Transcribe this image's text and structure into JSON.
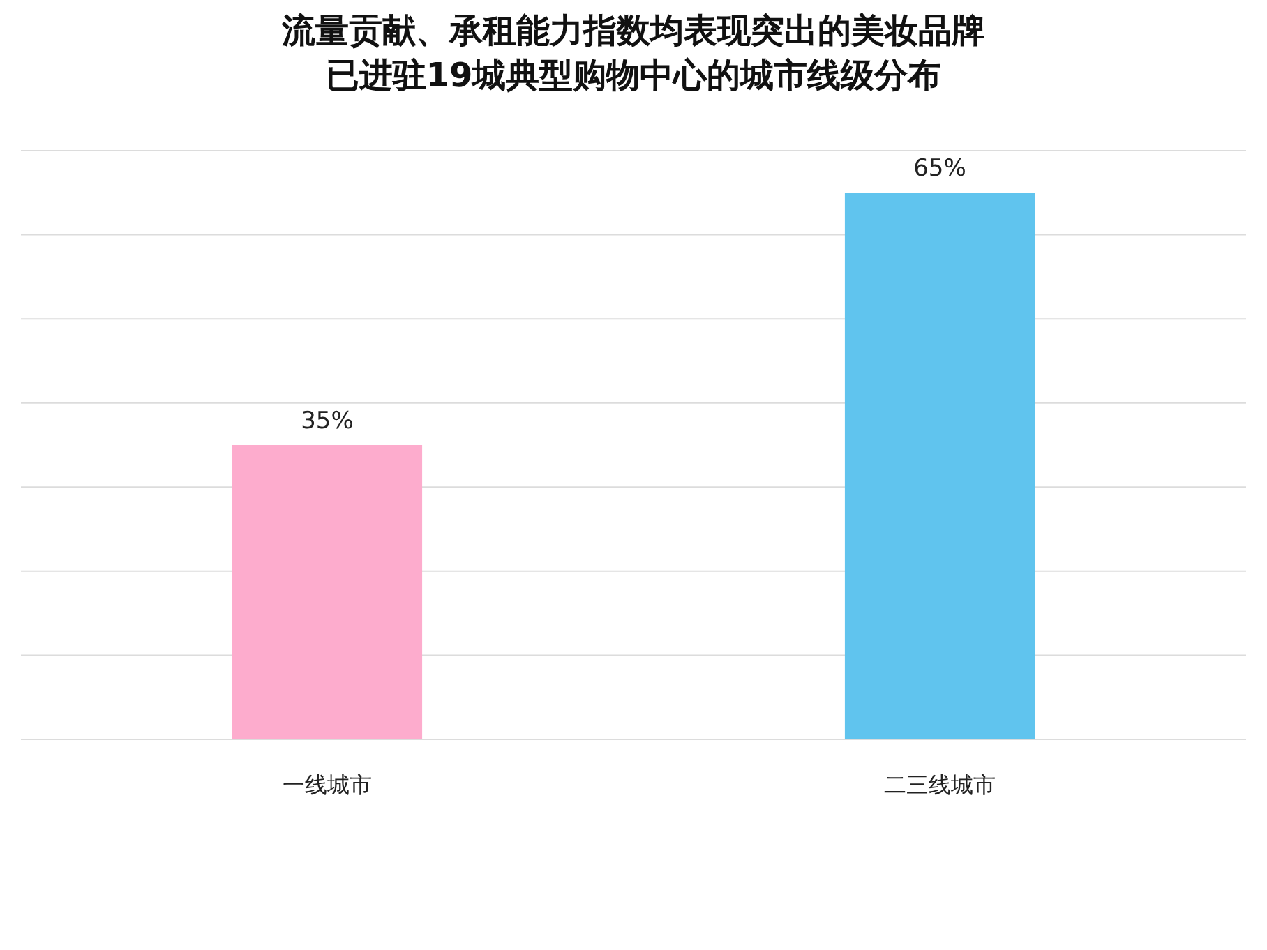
{
  "chart_data": {
    "type": "bar",
    "title": "流量贡献、承租能力指数均表现突出的美妆品牌",
    "subtitle": "已进驻19城典型购物中心的城市线级分布",
    "categories": [
      "一线城市",
      "二三线城市"
    ],
    "values": [
      35,
      65
    ],
    "colors": [
      "#fdaccd",
      "#60c4ee"
    ],
    "value_labels": [
      "35%",
      "65%"
    ],
    "ylim": [
      0,
      70
    ],
    "yticks": [
      {
        "value": 0,
        "label": null
      },
      {
        "value": 10,
        "label": null
      },
      {
        "value": 20,
        "label": null
      },
      {
        "value": 30,
        "label": null
      },
      {
        "value": 40,
        "label": null
      },
      {
        "value": 50,
        "label": null
      },
      {
        "value": 60,
        "label": null
      },
      {
        "value": 70,
        "label": null
      }
    ],
    "grid": "y",
    "tick_labels": "x"
  }
}
